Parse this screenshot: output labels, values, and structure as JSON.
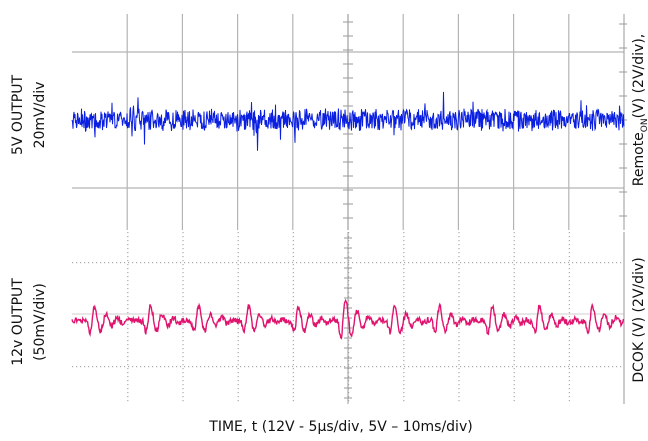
{
  "chart_data": [
    {
      "type": "line",
      "panel": "top",
      "ylabel_lines": [
        "5V OUTPUT",
        "20mV/div"
      ],
      "right_label": "RemoteON(V) (2V/div),",
      "right_label_parts": {
        "prefix": "Remote",
        "subscript": "ON",
        "suffix": "(V) (2V/div),"
      },
      "x_divisions": 10,
      "y_divisions": 3,
      "series": [
        {
          "color": "#0a1fe0",
          "mean": 0,
          "noise_pp": 1.3,
          "spike_max": 0.8
        }
      ]
    },
    {
      "type": "line",
      "panel": "bottom",
      "ylabel_lines": [
        "12v OUTPUT",
        "(50mV/div)"
      ],
      "right_label": "DCOK (V) (2V/div)",
      "x_divisions": 10,
      "y_divisions": 4,
      "series": [
        {
          "color": "#e0146e",
          "mean": 0,
          "ringing_bursts": 10,
          "burst_amplitude": 0.55
        }
      ]
    }
  ],
  "xlabel": "TIME, t (12V - 5μs/div, 5V – 10ms/div)",
  "colors": {
    "grid": "#b4b4b4",
    "axis": "#9a9a9a",
    "top_trace": "#0a1fe0",
    "bottom_trace": "#e0146e"
  }
}
